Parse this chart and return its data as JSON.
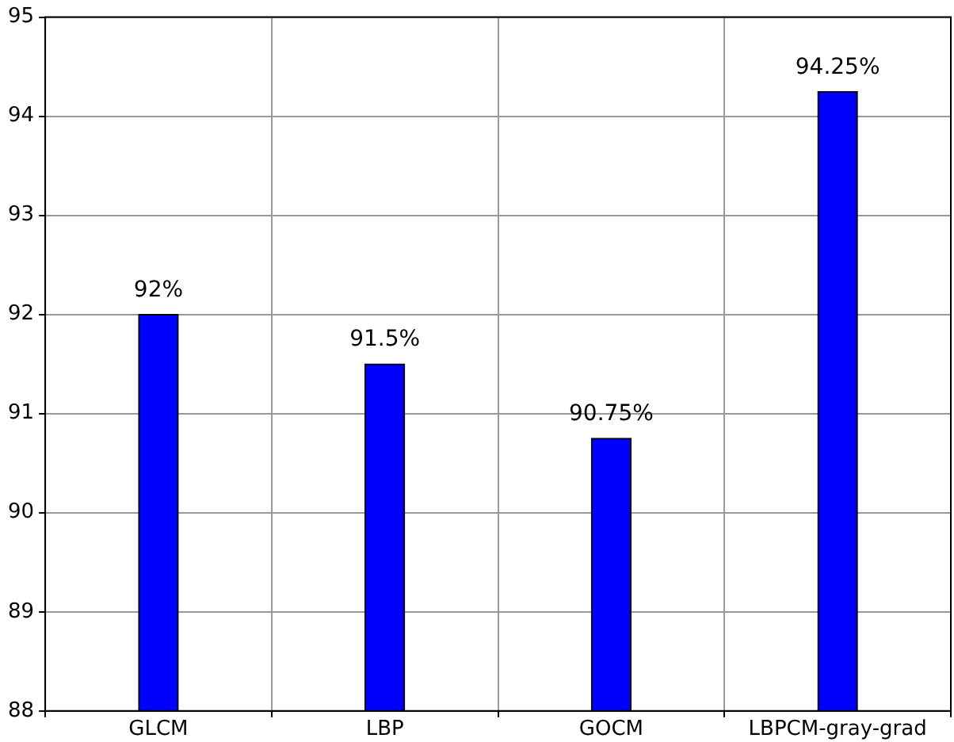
{
  "chart_data": {
    "type": "bar",
    "categories": [
      "GLCM",
      "LBP",
      "GOCM",
      "LBPCM-gray-grad"
    ],
    "values": [
      92,
      91.5,
      90.75,
      94.25
    ],
    "value_labels": [
      "92%",
      "91.5%",
      "90.75%",
      "94.25%"
    ],
    "color": "#0000ff",
    "ylim": [
      88,
      95
    ],
    "yticks": [
      88,
      89,
      90,
      91,
      92,
      93,
      94,
      95
    ],
    "grid": true
  }
}
